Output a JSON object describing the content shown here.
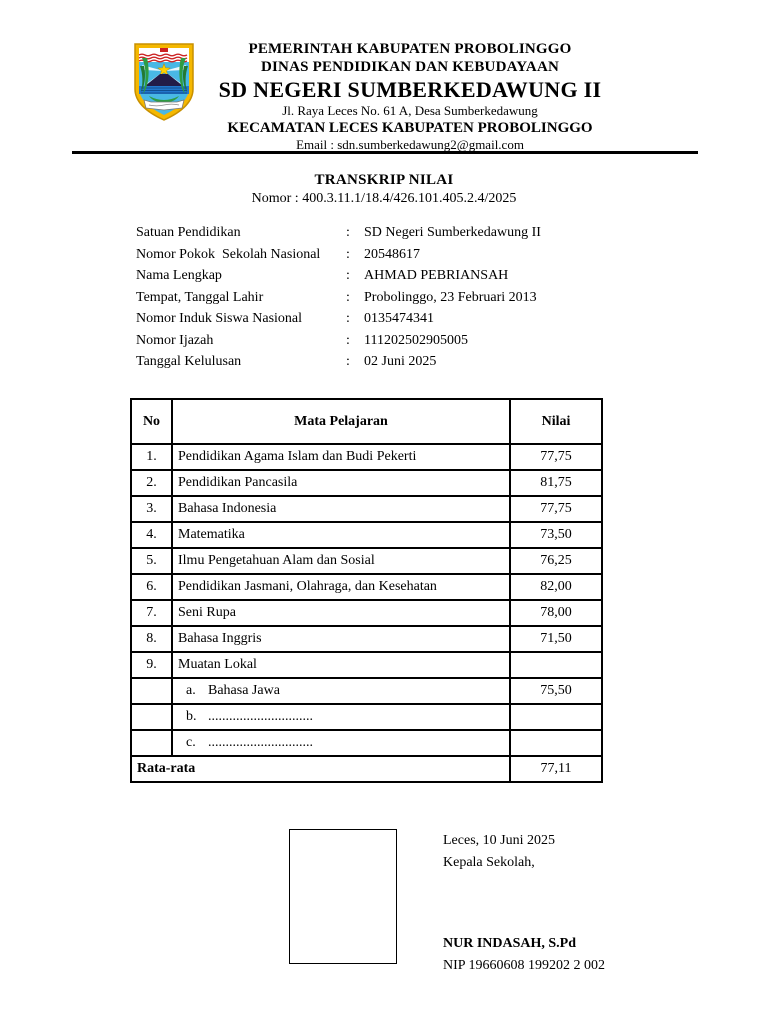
{
  "header": {
    "logo": "kabupaten-probolinggo-coat-of-arms",
    "government": "PEMERINTAH KABUPATEN PROBOLINGGO",
    "department": "DINAS PENDIDIKAN DAN KEBUDAYAAN",
    "school_name": "SD NEGERI SUMBERKEDAWUNG II",
    "address": "Jl. Raya Leces No. 61 A, Desa Sumberkedawung",
    "district": "KECAMATAN LECES KABUPATEN PROBOLINGGO",
    "email": "Email : sdn.sumberkedawung2@gmail.com"
  },
  "title": {
    "heading": "TRANSKRIP NILAI",
    "number": "Nomor : 400.3.11.1/18.4/426.101.405.2.4/2025"
  },
  "student": {
    "separator": ":",
    "rows": [
      {
        "label": "Satuan Pendidikan",
        "value": "SD Negeri Sumberkedawung II"
      },
      {
        "label": "Nomor Pokok  Sekolah Nasional",
        "value": "20548617"
      },
      {
        "label": "Nama Lengkap",
        "value": "AHMAD PEBRIANSAH"
      },
      {
        "label": "Tempat, Tanggal Lahir",
        "value": "Probolinggo, 23 Februari 2013"
      },
      {
        "label": "Nomor Induk Siswa Nasional",
        "value": "0135474341"
      },
      {
        "label": "Nomor Ijazah",
        "value": "111202502905005"
      },
      {
        "label": "Tanggal Kelulusan",
        "value": "02 Juni 2025"
      }
    ]
  },
  "grades_table": {
    "headers": {
      "no": "No",
      "subject": "Mata Pelajaran",
      "score": "Nilai"
    },
    "rows": [
      {
        "no": "1.",
        "sub_label": "",
        "subject": "Pendidikan Agama Islam dan Budi Pekerti",
        "score": "77,75"
      },
      {
        "no": "2.",
        "sub_label": "",
        "subject": "Pendidikan Pancasila",
        "score": "81,75"
      },
      {
        "no": "3.",
        "sub_label": "",
        "subject": "Bahasa Indonesia",
        "score": "77,75"
      },
      {
        "no": "4.",
        "sub_label": "",
        "subject": "Matematika",
        "score": "73,50"
      },
      {
        "no": "5.",
        "sub_label": "",
        "subject": "Ilmu Pengetahuan Alam dan Sosial",
        "score": "76,25"
      },
      {
        "no": "6.",
        "sub_label": "",
        "subject": "Pendidikan Jasmani, Olahraga, dan Kesehatan",
        "score": "82,00"
      },
      {
        "no": "7.",
        "sub_label": "",
        "subject": "Seni Rupa",
        "score": "78,00"
      },
      {
        "no": "8.",
        "sub_label": "",
        "subject": "Bahasa Inggris",
        "score": "71,50"
      },
      {
        "no": "9.",
        "sub_label": "",
        "subject": "Muatan Lokal",
        "score": ""
      },
      {
        "no": "",
        "sub_label": "a.",
        "subject": "Bahasa Jawa",
        "score": "75,50"
      },
      {
        "no": "",
        "sub_label": "b.",
        "subject": "..............................",
        "score": ""
      },
      {
        "no": "",
        "sub_label": "c.",
        "subject": "..............................",
        "score": ""
      }
    ],
    "footer": {
      "label": "Rata-rata",
      "score": "77,11"
    }
  },
  "signature": {
    "place_date": "Leces, 10 Juni 2025",
    "role": "Kepala Sekolah,",
    "name": "NUR INDASAH, S.Pd",
    "nip": "NIP 19660608 199202 2 002"
  }
}
